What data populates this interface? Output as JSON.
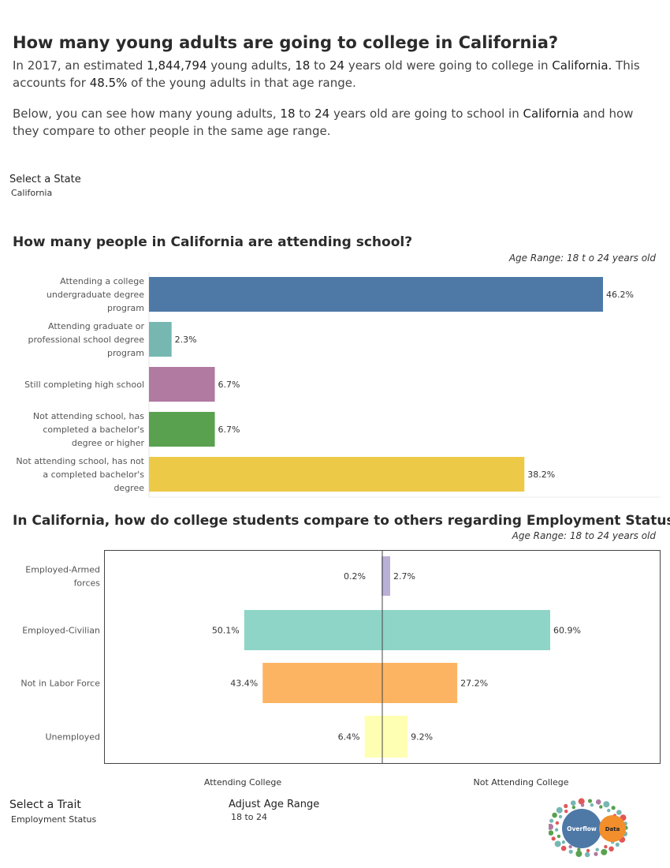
{
  "header": {
    "title": "How many young adults are going to college in California?",
    "p1_a": "In 2017, an estimated ",
    "p1_count": "1,844,794",
    "p1_b": " young adults, ",
    "p1_age_from": "18",
    "p1_c": " to ",
    "p1_age_to": "24",
    "p1_d": " years old were going to college in ",
    "p1_state": "California.",
    "p1_e": " This accounts for ",
    "p1_pct": "48.5%",
    "p1_f": " of the young adults in that age range.",
    "p2_a": "Below, you can see how many young adults, ",
    "p2_age_from": "18",
    "p2_b": " to ",
    "p2_age_to": "24",
    "p2_c": " years old are going to school in ",
    "p2_state": "California",
    "p2_d": " and how they compare to other people in the same age range."
  },
  "controls": {
    "state_label": "Select a State",
    "state_value": "California",
    "trait_label": "Select a Trait",
    "trait_value": "Employment Status",
    "age_label": "Adjust Age Range",
    "age_value": "18 to 24"
  },
  "chart_data": [
    {
      "type": "bar",
      "orientation": "horizontal",
      "title": "How many people in California are attending school?",
      "subtitle": "Age Range:  18 t o 24 years old",
      "categories": [
        [
          "Attending a college",
          "undergraduate degree",
          "program"
        ],
        [
          "Attending graduate or",
          "professional school degree",
          "program"
        ],
        [
          "Still completing high school"
        ],
        [
          "Not attending school, has",
          "completed a bachelor's",
          "degree or higher"
        ],
        [
          "Not attending school, has not",
          "a completed bachelor's",
          "degree"
        ]
      ],
      "values": [
        46.2,
        2.3,
        6.7,
        6.7,
        38.2
      ],
      "labels": [
        "46.2%",
        "2.3%",
        "6.7%",
        "6.7%",
        "38.2%"
      ],
      "colors": [
        "#4e79a7",
        "#76b7b2",
        "#b07aa1",
        "#59a14f",
        "#edc948"
      ],
      "xlim": [
        0,
        46.2
      ]
    },
    {
      "type": "bar",
      "orientation": "diverging",
      "title": "In California, how do college students compare to others regarding Employment Status?",
      "subtitle": "Age Range:  18 to 24 years old",
      "categories": [
        [
          "Employed-Armed",
          "forces"
        ],
        [
          "Employed-Civilian"
        ],
        [
          "Not in Labor Force"
        ],
        [
          "Unemployed"
        ]
      ],
      "series": [
        {
          "name": "Attending College",
          "values": [
            0.2,
            50.1,
            43.4,
            6.4
          ],
          "labels": [
            "0.2%",
            "50.1%",
            "43.4%",
            "6.4%"
          ]
        },
        {
          "name": "Not Attending College",
          "values": [
            2.7,
            60.9,
            27.2,
            9.2
          ],
          "labels": [
            "2.7%",
            "60.9%",
            "27.2%",
            "9.2%"
          ]
        }
      ],
      "colors": [
        "#bab0d6",
        "#8fd5c7",
        "#fdb462",
        "#ffffb3"
      ],
      "xlim": [
        0,
        60.9
      ]
    }
  ],
  "logo": {
    "text_left": "Overflow",
    "text_right": "Data"
  }
}
